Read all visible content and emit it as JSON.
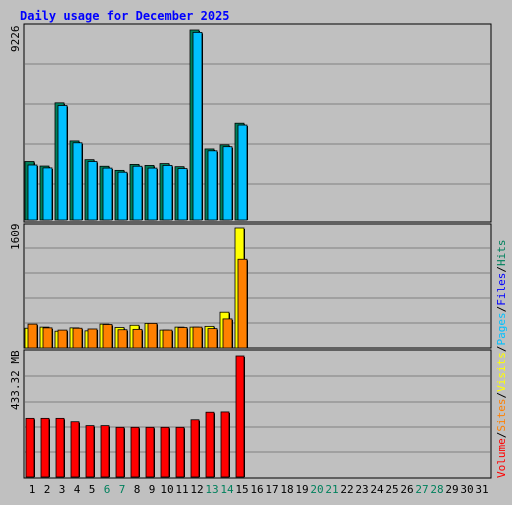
{
  "chart_data": {
    "type": "bar",
    "title": "Daily usage for December 2025",
    "days": [
      "1",
      "2",
      "3",
      "4",
      "5",
      "6",
      "7",
      "8",
      "9",
      "10",
      "11",
      "12",
      "13",
      "14",
      "15",
      "16",
      "17",
      "18",
      "19",
      "20",
      "21",
      "22",
      "23",
      "24",
      "25",
      "26",
      "27",
      "28",
      "29",
      "30",
      "31"
    ],
    "weekend_days": [
      "6",
      "7",
      "13",
      "14",
      "20",
      "21",
      "27",
      "28"
    ],
    "panels": {
      "hits_files": {
        "max_label": "9226",
        "ymax": 9226,
        "series": [
          {
            "name": "Hits",
            "color": "#00805c",
            "values": [
              2840,
              2620,
              5690,
              3840,
              2930,
              2610,
              2410,
              2700,
              2650,
              2740,
              2590,
              9226,
              3450,
              3650,
              4700,
              0,
              0,
              0,
              0,
              0,
              0,
              0,
              0,
              0,
              0,
              0,
              0,
              0,
              0,
              0,
              0
            ]
          },
          {
            "name": "Files",
            "color": "#00c0ff",
            "values": [
              2670,
              2530,
              5560,
              3750,
              2840,
              2520,
              2320,
              2610,
              2520,
              2650,
              2500,
              9110,
              3360,
              3560,
              4610,
              0,
              0,
              0,
              0,
              0,
              0,
              0,
              0,
              0,
              0,
              0,
              0,
              0,
              0,
              0,
              0
            ]
          }
        ]
      },
      "pages_visits": {
        "max_label": "1609",
        "ymax": 1609,
        "series": [
          {
            "name": "Pages",
            "color": "#ffff00",
            "values": [
              265,
              280,
              225,
              270,
              230,
              320,
              275,
              305,
              330,
              240,
              280,
              280,
              290,
              480,
              1609,
              0,
              0,
              0,
              0,
              0,
              0,
              0,
              0,
              0,
              0,
              0,
              0,
              0,
              0,
              0,
              0
            ]
          },
          {
            "name": "Visits",
            "color": "#ff8000",
            "values": [
              320,
              270,
              240,
              265,
              255,
              315,
              245,
              250,
              330,
              240,
              275,
              280,
              260,
              390,
              1190,
              0,
              0,
              0,
              0,
              0,
              0,
              0,
              0,
              0,
              0,
              0,
              0,
              0,
              0,
              0,
              0
            ]
          }
        ]
      },
      "volume": {
        "max_label": "433.32 MB",
        "ymax": 433.32,
        "series": [
          {
            "name": "Volume",
            "color": "#ff0000",
            "values": [
              210,
              210,
              210,
              198,
              184,
              184,
              178,
              178,
              178,
              178,
              178,
              205,
              232,
              233,
              433.32,
              0,
              0,
              0,
              0,
              0,
              0,
              0,
              0,
              0,
              0,
              0,
              0,
              0,
              0,
              0,
              0
            ]
          }
        ]
      }
    },
    "legend_right": [
      {
        "text": "Volume",
        "color": "#ff0000"
      },
      {
        "text": "/",
        "color": "#000000"
      },
      {
        "text": "Sites",
        "color": "#ff8000"
      },
      {
        "text": "/",
        "color": "#000000"
      },
      {
        "text": "Visits",
        "color": "#ffff00"
      },
      {
        "text": "/",
        "color": "#000000"
      },
      {
        "text": "Pages",
        "color": "#00c0ff"
      },
      {
        "text": "/",
        "color": "#000000"
      },
      {
        "text": "Files",
        "color": "#0000ff"
      },
      {
        "text": "/",
        "color": "#000000"
      },
      {
        "text": "Hits",
        "color": "#00805c"
      }
    ],
    "colors": {
      "background": "#c0c0c0",
      "title": "#0000ff",
      "gridline": "#808080",
      "weekday_label": "#000000",
      "weekend_label": "#00805c"
    },
    "grid": true
  }
}
